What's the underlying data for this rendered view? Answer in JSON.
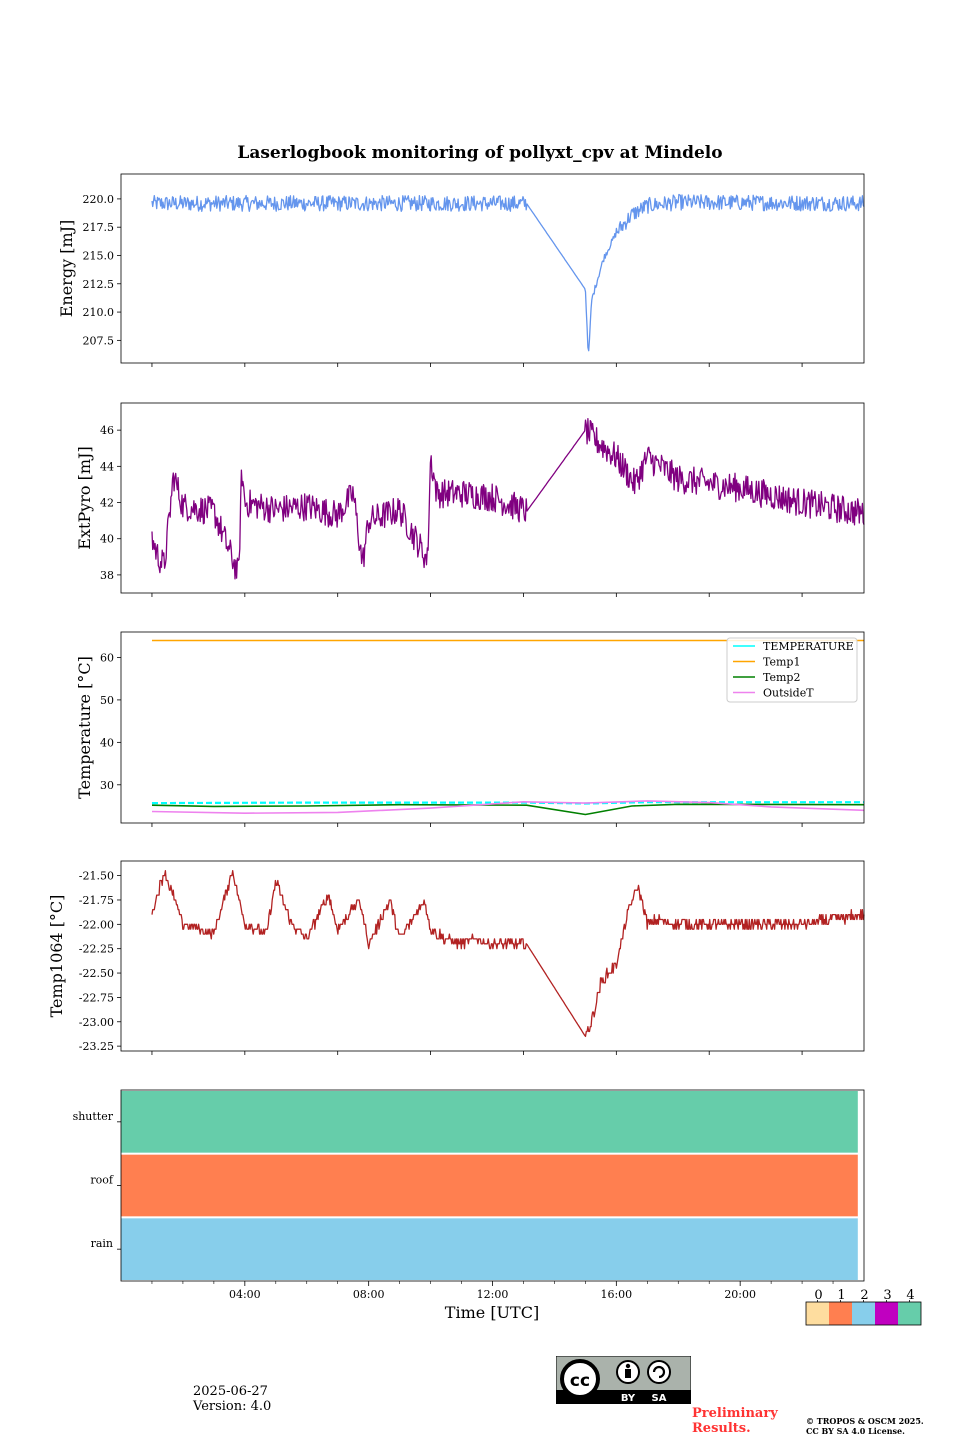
{
  "title": "Laserlogbook monitoring of pollyxt_cpv at Mindelo",
  "x_axis": {
    "label": "Time [UTC]",
    "range_hours": [
      0,
      24
    ],
    "ticks": [
      "04:00",
      "08:00",
      "12:00",
      "16:00",
      "20:00"
    ],
    "tick_hours": [
      4,
      8,
      12,
      16,
      20
    ]
  },
  "footer": {
    "date": "2025-06-27",
    "version": "Version: 4.0",
    "preliminary": "Preliminary Results.",
    "copyright_line1": "© TROPOS & OSCM 2025.",
    "copyright_line2": "CC BY SA 4.0 License.",
    "cc_by": "BY",
    "cc_sa": "SA"
  },
  "flag_colorbar": {
    "labels": [
      "0",
      "1",
      "2",
      "3",
      "4"
    ],
    "colors": [
      "#fedd9f",
      "#ff7f50",
      "#87ceeb",
      "#c000c0",
      "#66cdaa"
    ]
  },
  "chart_data": [
    {
      "type": "line",
      "ylabel": "Energy [mJ]",
      "ylim": [
        205.5,
        222.2
      ],
      "yticks": [
        207.5,
        210.0,
        212.5,
        215.0,
        217.5,
        220.0
      ],
      "series": [
        {
          "color": "#6495ed",
          "x": [
            1.0,
            13.1,
            15.0,
            15.1,
            15.2,
            15.4,
            15.6,
            16.0,
            16.5,
            17.0,
            18.0,
            24.0
          ],
          "y": [
            219.6,
            219.6,
            212.0,
            206.0,
            211.0,
            213.0,
            214.8,
            217.0,
            218.6,
            219.4,
            219.7,
            219.6
          ]
        }
      ]
    },
    {
      "type": "line",
      "ylabel": "ExtPyro [mJ]",
      "ylim": [
        37.0,
        47.5
      ],
      "yticks": [
        38,
        40,
        42,
        44,
        46
      ],
      "series": [
        {
          "color": "#800080",
          "x": [
            1.0,
            1.2,
            1.4,
            1.7,
            2.0,
            3.0,
            3.8,
            3.9,
            4.0,
            5.0,
            6.0,
            7.0,
            7.5,
            7.8,
            8.0,
            9.0,
            9.9,
            10.0,
            10.2,
            11.0,
            12.0,
            13.1,
            15.0,
            15.3,
            16.0,
            16.6,
            17.0,
            18.0,
            20.0,
            22.0,
            24.0
          ],
          "y": [
            40.0,
            39.0,
            38.5,
            43.5,
            41.8,
            41.5,
            38.0,
            43.8,
            42.0,
            41.6,
            41.8,
            41.3,
            42.5,
            38.6,
            41.0,
            41.6,
            38.8,
            44.5,
            42.5,
            42.5,
            42.3,
            41.5,
            46.0,
            45.5,
            44.5,
            43.0,
            44.5,
            43.3,
            42.8,
            42.0,
            41.4
          ]
        }
      ]
    },
    {
      "type": "line",
      "ylabel": "Temperature [°C]",
      "ylim": [
        21,
        66
      ],
      "yticks": [
        30,
        40,
        50,
        60
      ],
      "legend_position": "upper right",
      "series": [
        {
          "name": "TEMPERATURE",
          "color": "#00ffff",
          "dashed": true,
          "x": [
            1.0,
            6.0,
            13.1,
            15.0,
            17.0,
            20.0,
            24.0
          ],
          "y": [
            25.7,
            25.8,
            25.8,
            25.6,
            25.9,
            25.9,
            25.9
          ]
        },
        {
          "name": "Temp1",
          "color": "#ffa500",
          "x": [
            1.0,
            24.0
          ],
          "y": [
            64.0,
            64.0
          ]
        },
        {
          "name": "Temp2",
          "color": "#008000",
          "x": [
            1.0,
            3.0,
            6.0,
            9.0,
            13.1,
            15.0,
            16.5,
            18.0,
            24.0
          ],
          "y": [
            25.2,
            24.9,
            25.0,
            25.3,
            25.2,
            23.0,
            25.0,
            25.4,
            25.3
          ]
        },
        {
          "name": "OutsideT",
          "color": "#ee82ee",
          "x": [
            1.0,
            4.0,
            7.0,
            10.0,
            13.0,
            15.0,
            17.0,
            19.0,
            21.0,
            24.0
          ],
          "y": [
            23.7,
            23.3,
            23.5,
            24.5,
            26.0,
            25.7,
            26.2,
            25.8,
            24.8,
            24.0
          ]
        }
      ]
    },
    {
      "type": "line",
      "ylabel": "Temp1064 [°C]",
      "ylim": [
        -23.3,
        -21.35
      ],
      "yticks": [
        -23.25,
        -23.0,
        -22.75,
        -22.5,
        -22.25,
        -22.0,
        -21.75,
        -21.5
      ],
      "series": [
        {
          "color": "#b22222",
          "x": [
            1.0,
            1.4,
            2.0,
            2.5,
            3.0,
            3.6,
            4.0,
            4.7,
            5.0,
            5.5,
            6.0,
            6.7,
            7.0,
            7.7,
            8.0,
            8.7,
            9.0,
            9.8,
            10.0,
            10.5,
            11.0,
            11.5,
            12.0,
            13.1,
            15.0,
            15.2,
            15.5,
            16.0,
            16.4,
            16.7,
            17.0,
            17.3,
            18.0,
            20.0,
            22.0,
            24.0
          ],
          "y": [
            -21.9,
            -21.45,
            -22.0,
            -22.05,
            -22.1,
            -21.45,
            -22.0,
            -22.1,
            -21.55,
            -22.0,
            -22.15,
            -21.7,
            -22.05,
            -21.75,
            -22.2,
            -21.75,
            -22.15,
            -21.75,
            -22.05,
            -22.15,
            -22.2,
            -22.15,
            -22.2,
            -22.2,
            -23.15,
            -23.0,
            -22.6,
            -22.4,
            -21.85,
            -21.6,
            -22.0,
            -21.95,
            -22.0,
            -22.0,
            -22.0,
            -21.9
          ]
        }
      ]
    },
    {
      "type": "heatmap",
      "categories": [
        "rain",
        "roof",
        "shutter"
      ],
      "x_end_hours": 23.8,
      "values": [
        2,
        1,
        4
      ]
    }
  ]
}
